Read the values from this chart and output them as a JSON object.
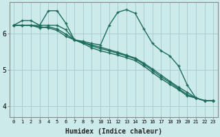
{
  "xlabel": "Humidex (Indice chaleur)",
  "bg_color": "#cceaea",
  "grid_color": "#aacccc",
  "line_color": "#1a6b5a",
  "xlim": [
    -0.5,
    23.5
  ],
  "ylim": [
    3.7,
    6.85
  ],
  "yticks": [
    4,
    5,
    6
  ],
  "xtick_labels": [
    "0",
    "1",
    "2",
    "3",
    "4",
    "5",
    "6",
    "7",
    "8",
    "9",
    "10",
    "11",
    "12",
    "13",
    "14",
    "15",
    "16",
    "17",
    "18",
    "19",
    "20",
    "21",
    "22",
    "23"
  ],
  "line1": [
    6.22,
    6.35,
    6.35,
    6.22,
    6.62,
    6.62,
    6.28,
    5.82,
    5.78,
    5.72,
    5.68,
    6.22,
    6.58,
    6.65,
    6.55,
    6.12,
    5.72,
    5.52,
    5.38,
    5.1,
    4.58,
    4.22,
    4.15,
    4.15
  ],
  "line2": [
    6.22,
    6.22,
    6.22,
    6.22,
    6.22,
    6.22,
    6.1,
    5.82,
    5.75,
    5.68,
    5.62,
    5.55,
    5.48,
    5.4,
    5.32,
    5.18,
    5.02,
    4.85,
    4.68,
    4.52,
    4.38,
    4.22,
    4.15,
    4.15
  ],
  "line3": [
    6.22,
    6.22,
    6.22,
    6.15,
    6.18,
    6.12,
    5.98,
    5.82,
    5.75,
    5.65,
    5.58,
    5.52,
    5.45,
    5.38,
    5.3,
    5.15,
    4.98,
    4.8,
    4.65,
    4.48,
    4.32,
    4.22,
    4.15,
    4.15
  ],
  "line4": [
    6.22,
    6.22,
    6.22,
    6.18,
    6.15,
    6.08,
    5.92,
    5.82,
    5.72,
    5.6,
    5.52,
    5.46,
    5.4,
    5.33,
    5.25,
    5.1,
    4.92,
    4.75,
    4.6,
    4.45,
    4.28,
    4.22,
    4.15,
    4.15
  ]
}
